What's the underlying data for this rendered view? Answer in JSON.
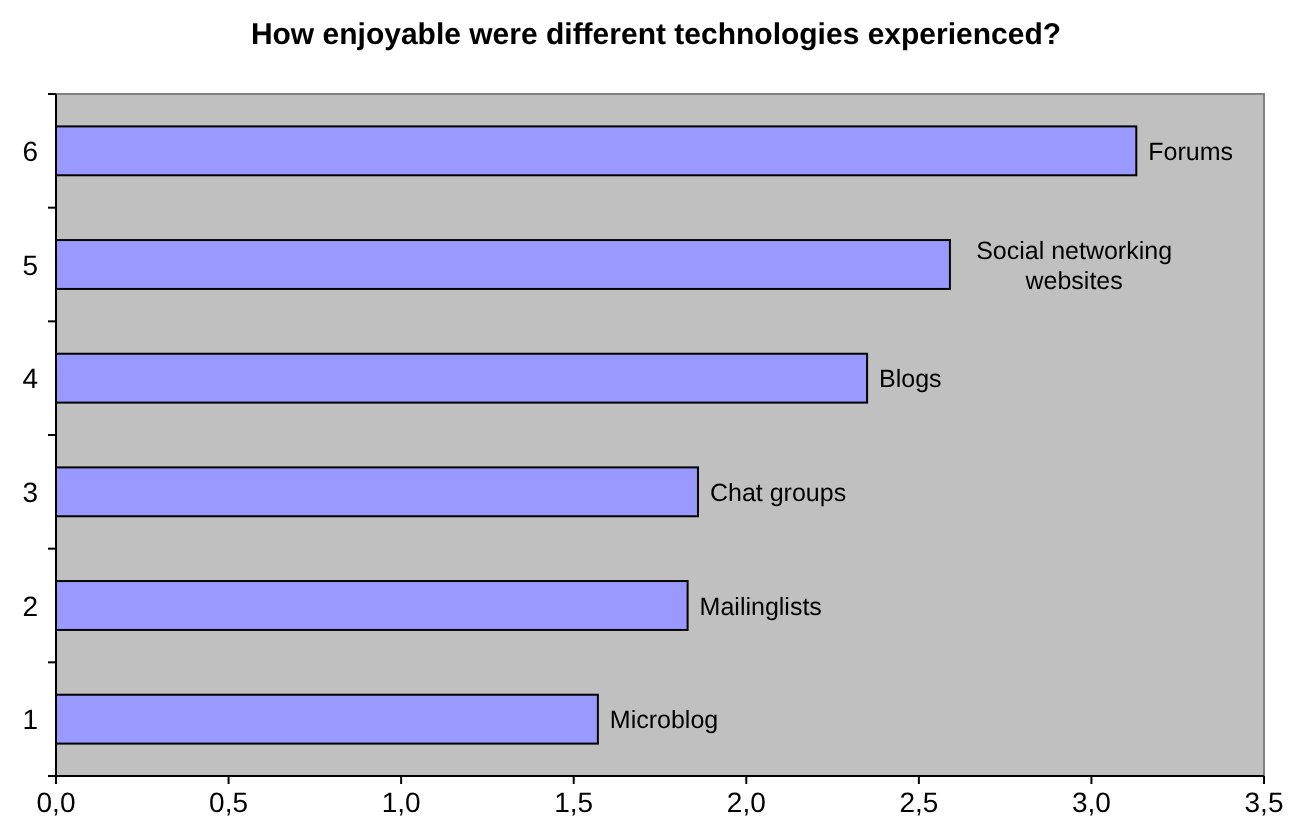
{
  "chart_data": {
    "type": "bar",
    "orientation": "horizontal",
    "title": "How enjoyable were different technologies experienced?",
    "categories": [
      "6",
      "5",
      "4",
      "3",
      "2",
      "1"
    ],
    "values": [
      3.13,
      2.59,
      2.35,
      1.86,
      1.83,
      1.57
    ],
    "color": "#9999ff",
    "xlim": [
      0,
      3.5
    ],
    "xticks": [
      {
        "value": 0,
        "label": "0,0"
      },
      {
        "value": 0.5,
        "label": "0,5"
      },
      {
        "value": 1,
        "label": "1,0"
      },
      {
        "value": 1.5,
        "label": "1,5"
      },
      {
        "value": 2,
        "label": "2,0"
      },
      {
        "value": 2.5,
        "label": "2,5"
      },
      {
        "value": 3,
        "label": "3,0"
      },
      {
        "value": 3.5,
        "label": "3,5"
      }
    ],
    "grid": false,
    "annotations": [
      {
        "text": "Forums",
        "x": 3.13,
        "y": "6"
      },
      {
        "text": "Social networking websites",
        "x": 2.59,
        "y": "5"
      },
      {
        "text": "Blogs",
        "x": 2.35,
        "y": "4"
      },
      {
        "text": "Chat groups",
        "x": 1.86,
        "y": "3"
      },
      {
        "text": "Mailinglists",
        "x": 1.83,
        "y": "2"
      },
      {
        "text": "Microblog",
        "x": 1.57,
        "y": "1"
      }
    ]
  }
}
